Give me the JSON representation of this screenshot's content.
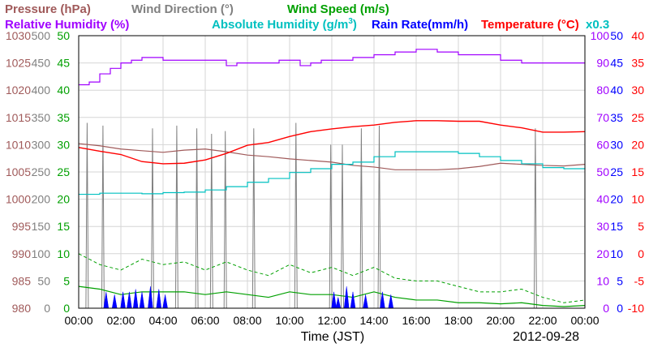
{
  "chart_data": {
    "type": "line",
    "date": "2012-09-28",
    "xlabel": "Time (JST)",
    "x_ticks": [
      "00:00",
      "02:00",
      "04:00",
      "06:00",
      "08:00",
      "10:00",
      "12:00",
      "14:00",
      "16:00",
      "18:00",
      "20:00",
      "22:00",
      "00:00"
    ],
    "header": {
      "pressure": "Pressure (hPa)",
      "wind_direction": "Wind Direction (°)",
      "wind_speed": "Wind Speed (m/s)",
      "relative_humidity": "Relative Humidity (%)",
      "absolute_humidity": "Absolute Humidity (g/m",
      "absolute_humidity_sup": "3",
      "absolute_humidity_close": ")",
      "rain_rate": "Rain Rate(mm/h)",
      "temperature": "Temperature (°C)",
      "scale_note": "x0.3"
    },
    "colors": {
      "pressure": "#a05a5a",
      "wind_direction": "#808080",
      "wind_speed": "#00a000",
      "relative_humidity": "#a000ff",
      "absolute_humidity": "#00c0c0",
      "rain_rate": "#0000ff",
      "temperature": "#ff0000"
    },
    "axes": {
      "pressure": {
        "ylim": [
          980,
          1030
        ],
        "ticks": [
          "1030",
          "1025",
          "1020",
          "1015",
          "1010",
          "1005",
          "1000",
          "995",
          "990",
          "985",
          "980"
        ]
      },
      "wind_direction": {
        "ylim": [
          0,
          500
        ],
        "ticks": [
          "500",
          "450",
          "400",
          "350",
          "300",
          "250",
          "200",
          "150",
          "100",
          "50",
          "0"
        ]
      },
      "wind_speed": {
        "ylim": [
          0,
          50
        ],
        "ticks": [
          "50",
          "45",
          "40",
          "35",
          "30",
          "25",
          "20",
          "15",
          "10",
          "5",
          "0"
        ]
      },
      "humidity": {
        "ylim": [
          0,
          100
        ],
        "ticks": [
          "100",
          "90",
          "80",
          "70",
          "60",
          "50",
          "40",
          "30",
          "20",
          "10",
          "0"
        ]
      },
      "rain_rate": {
        "ylim": [
          0,
          50
        ],
        "ticks": [
          "50",
          "45",
          "40",
          "35",
          "30",
          "25",
          "20",
          "15",
          "10",
          "5",
          "0"
        ]
      },
      "temperature": {
        "ylim": [
          -10,
          40
        ],
        "ticks": [
          "40",
          "35",
          "30",
          "25",
          "20",
          "15",
          "10",
          "5",
          "0",
          "-5",
          "-10"
        ]
      }
    },
    "series": [
      {
        "name": "Relative Humidity (%)",
        "points": [
          [
            0,
            82
          ],
          [
            0.5,
            83
          ],
          [
            1,
            86
          ],
          [
            1.5,
            88
          ],
          [
            2,
            90
          ],
          [
            2.5,
            91
          ],
          [
            3,
            92
          ],
          [
            4,
            91
          ],
          [
            5,
            91
          ],
          [
            6,
            91
          ],
          [
            7,
            89
          ],
          [
            7.5,
            90
          ],
          [
            8,
            90
          ],
          [
            9,
            90
          ],
          [
            9.5,
            91
          ],
          [
            10,
            91
          ],
          [
            10.5,
            89
          ],
          [
            11,
            90
          ],
          [
            11.5,
            91
          ],
          [
            12,
            91
          ],
          [
            13,
            92
          ],
          [
            14,
            93
          ],
          [
            15,
            94
          ],
          [
            16,
            95
          ],
          [
            17,
            94
          ],
          [
            18,
            93
          ],
          [
            19,
            93
          ],
          [
            20,
            91
          ],
          [
            21,
            90
          ],
          [
            22,
            90
          ],
          [
            23,
            90
          ],
          [
            24,
            90
          ]
        ]
      },
      {
        "name": "Absolute Humidity (g/m3)",
        "points": [
          [
            0,
            41.8
          ],
          [
            1,
            42.2
          ],
          [
            2,
            42.2
          ],
          [
            3,
            42
          ],
          [
            4,
            42.4
          ],
          [
            5,
            42.6
          ],
          [
            6,
            43.4
          ],
          [
            7,
            44.6
          ],
          [
            8,
            46.2
          ],
          [
            9,
            47.6
          ],
          [
            10,
            49.8
          ],
          [
            11,
            51.2
          ],
          [
            12,
            52.8
          ],
          [
            13,
            53.6
          ],
          [
            14,
            55.6
          ],
          [
            15,
            57.4
          ],
          [
            16,
            57.4
          ],
          [
            17,
            57.4
          ],
          [
            18,
            56.8
          ],
          [
            19,
            55.6
          ],
          [
            20,
            54.2
          ],
          [
            21,
            53
          ],
          [
            22,
            51.6
          ],
          [
            23,
            51.2
          ],
          [
            24,
            51
          ]
        ]
      },
      {
        "name": "Temperature (°C)",
        "points": [
          [
            0,
            19.5
          ],
          [
            1,
            18.8
          ],
          [
            2,
            18.2
          ],
          [
            3,
            16.9
          ],
          [
            4,
            16.5
          ],
          [
            5,
            16.6
          ],
          [
            6,
            17.2
          ],
          [
            7,
            18.4
          ],
          [
            8,
            19.9
          ],
          [
            9,
            20.4
          ],
          [
            10,
            21.5
          ],
          [
            11,
            22.4
          ],
          [
            12,
            22.9
          ],
          [
            13,
            23.3
          ],
          [
            14,
            23.6
          ],
          [
            15,
            24.1
          ],
          [
            16,
            24.4
          ],
          [
            17,
            24.4
          ],
          [
            18,
            24.3
          ],
          [
            19,
            24.3
          ],
          [
            20,
            23.6
          ],
          [
            21,
            23.1
          ],
          [
            22,
            22.3
          ],
          [
            23,
            22.3
          ],
          [
            24,
            22.4
          ]
        ]
      },
      {
        "name": "Pressure (hPa)",
        "points": [
          [
            0,
            1010.2
          ],
          [
            1,
            1009.8
          ],
          [
            2,
            1009.2
          ],
          [
            3,
            1008.9
          ],
          [
            4,
            1008.6
          ],
          [
            5,
            1009
          ],
          [
            6,
            1009.2
          ],
          [
            7,
            1008.7
          ],
          [
            8,
            1008.1
          ],
          [
            9,
            1007.8
          ],
          [
            10,
            1007.4
          ],
          [
            11,
            1007.1
          ],
          [
            12,
            1006.8
          ],
          [
            13,
            1006.2
          ],
          [
            14,
            1005.9
          ],
          [
            15,
            1005.4
          ],
          [
            16,
            1005.4
          ],
          [
            17,
            1005.4
          ],
          [
            18,
            1005.6
          ],
          [
            19,
            1006
          ],
          [
            20,
            1006.6
          ],
          [
            21,
            1006.4
          ],
          [
            22,
            1006.2
          ],
          [
            23,
            1006.1
          ],
          [
            24,
            1006.4
          ]
        ]
      },
      {
        "name": "Wind Speed (m/s) max",
        "points": [
          [
            0,
            10
          ],
          [
            1,
            8
          ],
          [
            2,
            7
          ],
          [
            3,
            9
          ],
          [
            4,
            8
          ],
          [
            5,
            8.5
          ],
          [
            6,
            7
          ],
          [
            7,
            8.5
          ],
          [
            8,
            7
          ],
          [
            9,
            6
          ],
          [
            10,
            8
          ],
          [
            11,
            6.5
          ],
          [
            12,
            7.5
          ],
          [
            13,
            6
          ],
          [
            14,
            7.5
          ],
          [
            15,
            5.5
          ],
          [
            16,
            5
          ],
          [
            17,
            5
          ],
          [
            18,
            4
          ],
          [
            19,
            3
          ],
          [
            20,
            3
          ],
          [
            21,
            3.5
          ],
          [
            22,
            2
          ],
          [
            23,
            1
          ],
          [
            24,
            1.5
          ]
        ]
      },
      {
        "name": "Wind Speed (m/s) mean",
        "points": [
          [
            0,
            4
          ],
          [
            1,
            3.5
          ],
          [
            2,
            2.5
          ],
          [
            3,
            3
          ],
          [
            4,
            3
          ],
          [
            5,
            3
          ],
          [
            6,
            2.5
          ],
          [
            7,
            3
          ],
          [
            8,
            2.5
          ],
          [
            9,
            2
          ],
          [
            10,
            3
          ],
          [
            11,
            2.5
          ],
          [
            12,
            2.5
          ],
          [
            13,
            2
          ],
          [
            14,
            3
          ],
          [
            15,
            2
          ],
          [
            16,
            1.5
          ],
          [
            17,
            1.5
          ],
          [
            18,
            1
          ],
          [
            19,
            1
          ],
          [
            20,
            0.8
          ],
          [
            21,
            1
          ],
          [
            22,
            0.5
          ],
          [
            23,
            0.3
          ],
          [
            24,
            0.5
          ]
        ]
      },
      {
        "name": "Wind Direction (°)",
        "spikes": [
          [
            0.4,
            340
          ],
          [
            1.15,
            335
          ],
          [
            3.5,
            330
          ],
          [
            4.65,
            335
          ],
          [
            5.6,
            330
          ],
          [
            6.3,
            320
          ],
          [
            6.95,
            325
          ],
          [
            8.3,
            330
          ],
          [
            10.3,
            340
          ],
          [
            11.95,
            300
          ],
          [
            12.5,
            300
          ],
          [
            13.4,
            330
          ],
          [
            14.25,
            335
          ],
          [
            21.65,
            330
          ]
        ]
      },
      {
        "name": "Rain Rate(mm/h)",
        "spikes": [
          [
            1.3,
            3
          ],
          [
            1.7,
            2.5
          ],
          [
            2.1,
            3
          ],
          [
            2.4,
            3
          ],
          [
            2.7,
            3.5
          ],
          [
            3.0,
            3
          ],
          [
            3.4,
            4
          ],
          [
            3.8,
            3.5
          ],
          [
            4.1,
            2.5
          ],
          [
            12.1,
            3
          ],
          [
            12.3,
            2
          ],
          [
            12.7,
            4
          ],
          [
            13.0,
            3
          ],
          [
            13.6,
            2.5
          ],
          [
            14.4,
            3
          ],
          [
            14.8,
            2.5
          ]
        ]
      }
    ]
  }
}
